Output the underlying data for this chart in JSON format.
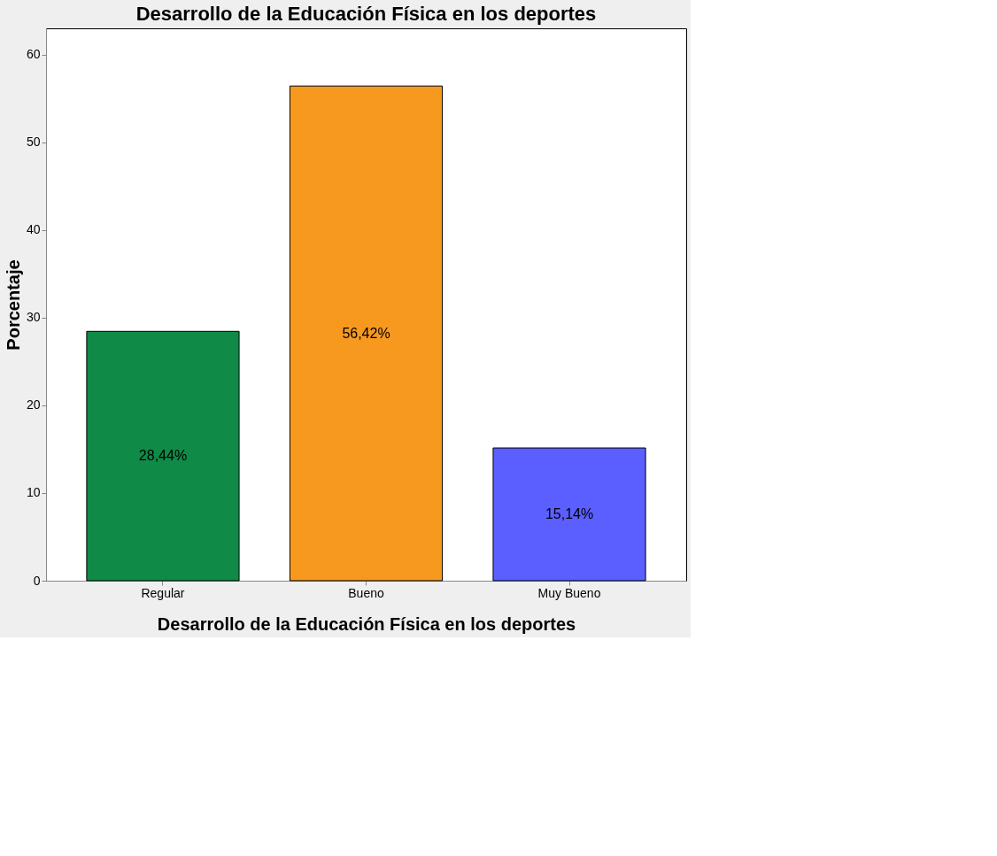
{
  "chart_data": {
    "type": "bar",
    "title": "Desarrollo de la Educación Física en los deportes",
    "xlabel": "Desarrollo de la Educación Física en los deportes",
    "ylabel": "Porcentaje",
    "categories": [
      "Regular",
      "Bueno",
      "Muy Bueno"
    ],
    "values": [
      28.44,
      56.42,
      15.14
    ],
    "colors": [
      "#0f8a47",
      "#f7991f",
      "#5b5fff"
    ],
    "value_labels": [
      "28,44%",
      "56,42%",
      "15,14%"
    ],
    "ylim": [
      0,
      63
    ],
    "yticks": [
      0,
      10,
      20,
      30,
      40,
      50,
      60
    ],
    "grid": false
  }
}
